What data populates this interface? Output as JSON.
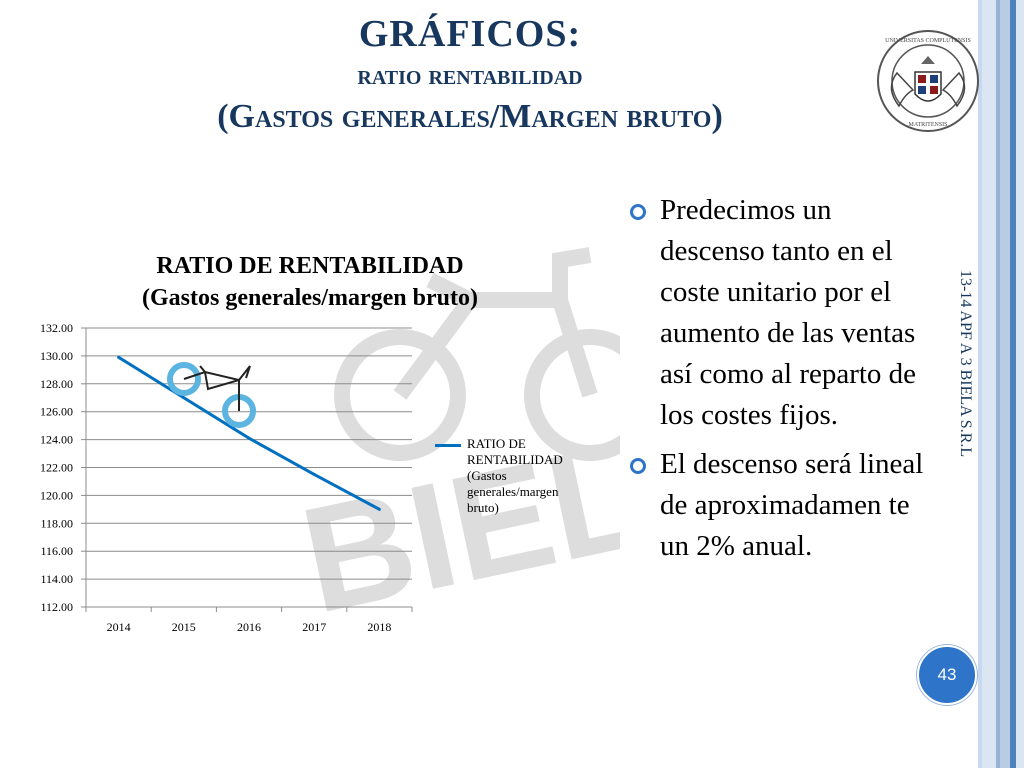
{
  "slide": {
    "title_line1": "GRÁFICOS:",
    "title_line2": "ratio rentabilidad",
    "title_line3": "(Gastos generales/Margen bruto)",
    "side_text": "13-14 APF A 3 BIELA S.R.L",
    "page_number": "43"
  },
  "colors": {
    "title": "#17375E",
    "accent": "#2E75C9",
    "series": "#0070C0",
    "stripes": [
      "#B8CCE4",
      "#95B3D7",
      "#DCE6F2",
      "#4F81BD",
      "#C6D9F1"
    ]
  },
  "bullets": [
    {
      "text": "Predecimos un descenso tanto en el coste unitario por el aumento de las ventas así como al reparto de los costes fijos."
    },
    {
      "text": "El descenso será lineal de aproximadamen te un 2% anual."
    }
  ],
  "chart_data": {
    "type": "line",
    "title_line1": "RATIO DE RENTABILIDAD",
    "title_line2": "(Gastos generales/margen bruto)",
    "categories": [
      "2014",
      "2015",
      "2016",
      "2017",
      "2018"
    ],
    "series": [
      {
        "name": "RATIO DE RENTABILIDAD (Gastos generales/margen bruto)",
        "values": [
          129.9,
          127.0,
          124.1,
          121.5,
          119.0
        ]
      }
    ],
    "yticks": [
      "112.00",
      "114.00",
      "116.00",
      "118.00",
      "120.00",
      "122.00",
      "124.00",
      "126.00",
      "128.00",
      "130.00",
      "132.00"
    ],
    "ylim": [
      112,
      132
    ],
    "grid": "horizontal",
    "legend": "right",
    "watermark_text": "BIELA"
  }
}
